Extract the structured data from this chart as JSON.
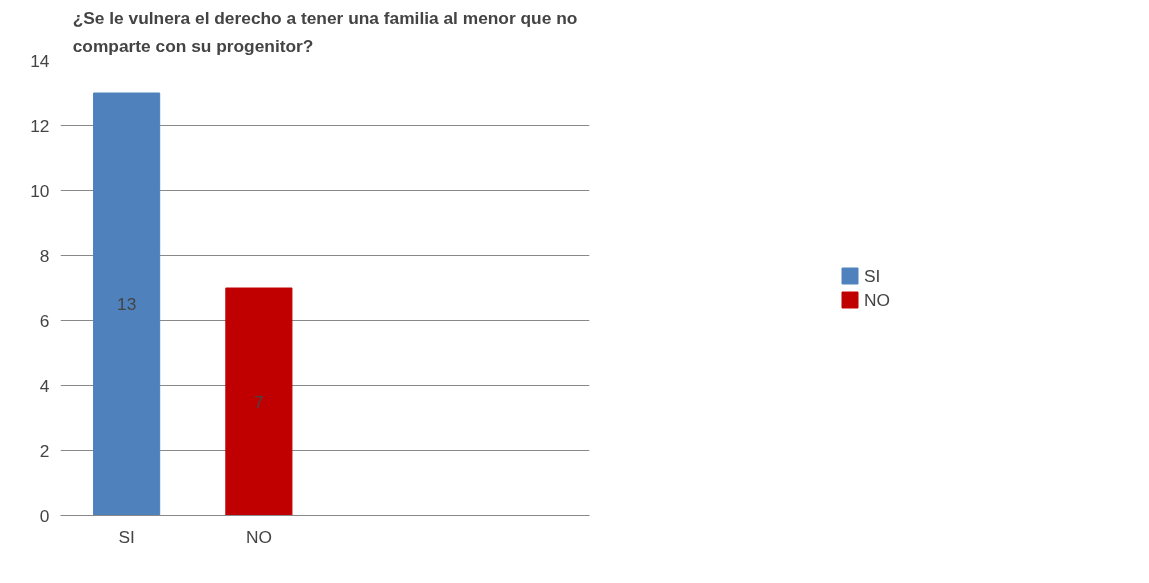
{
  "chart_data": {
    "type": "bar",
    "title": "¿Se le vulnera el derecho a tener una familia al menor que no comparte con su progenitor?",
    "categories": [
      "SI",
      "NO",
      null,
      null
    ],
    "series": [
      {
        "name": "SI",
        "color": "#4f81bd",
        "values": [
          13,
          null,
          null,
          null
        ]
      },
      {
        "name": "NO",
        "color": "#c00000",
        "values": [
          null,
          7,
          null,
          null
        ]
      }
    ],
    "ylim": [
      0,
      14
    ],
    "yticks": [
      0,
      2,
      4,
      6,
      8,
      10,
      12,
      14
    ],
    "grid": "y",
    "legend": "right",
    "data_labels": true
  }
}
